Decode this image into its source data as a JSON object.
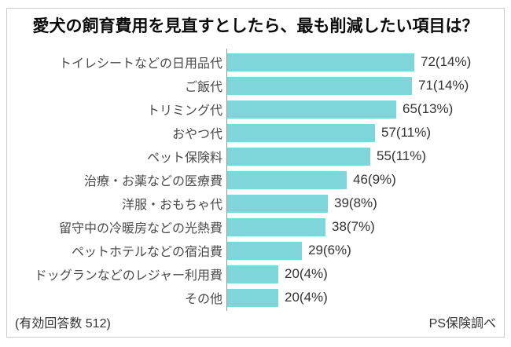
{
  "chart_data": {
    "type": "bar",
    "orientation": "horizontal",
    "title": "愛犬の飼育費用を見直すとしたら、最も削減したい項目は？",
    "categories": [
      "トイレシートなどの日用品代",
      "ご飯代",
      "トリミング代",
      "おやつ代",
      "ペット保険料",
      "治療・お薬などの医療費",
      "洋服・おもちゃ代",
      "留守中の冷暖房などの光熱費",
      "ペットホテルなどの宿泊費",
      "ドッグランなどのレジャー利用費",
      "その他"
    ],
    "values": [
      72,
      71,
      65,
      57,
      55,
      46,
      39,
      38,
      29,
      20,
      20
    ],
    "percentages": [
      14,
      14,
      13,
      11,
      11,
      9,
      8,
      7,
      6,
      4,
      4
    ],
    "value_labels": [
      "72(14%)",
      "71(14%)",
      "65(13%)",
      "57(11%)",
      "55(11%)",
      "46(9%)",
      "39(8%)",
      "38(7%)",
      "29(6%)",
      "20(4%)",
      "20(4%)"
    ],
    "max_value": 72,
    "xlim": [
      0,
      72
    ],
    "grid": false,
    "legend": "none",
    "bar_color": "#7FD6DA",
    "axis_color": "#999999",
    "frame_border_color": "#cccccc",
    "sample_note": "(有効回答数 512)",
    "source_note": "PS保険調べ"
  }
}
